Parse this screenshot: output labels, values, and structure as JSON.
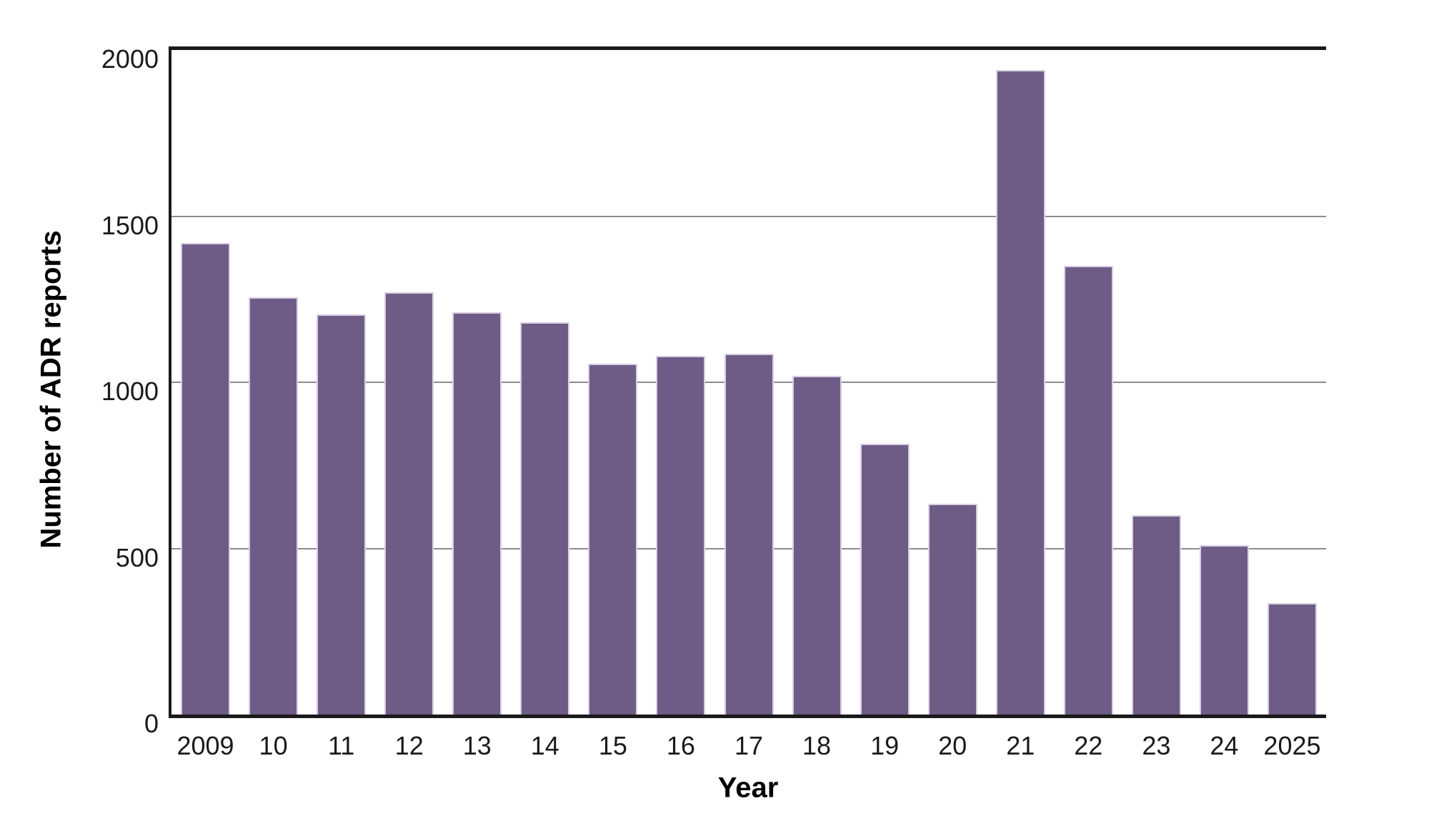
{
  "chart_data": {
    "type": "bar",
    "title": "",
    "xlabel": "Year",
    "ylabel": "Number of ADR reports",
    "categories": [
      "2009",
      "10",
      "11",
      "12",
      "13",
      "14",
      "15",
      "16",
      "17",
      "18",
      "19",
      "20",
      "21",
      "22",
      "23",
      "24",
      "2025"
    ],
    "values": [
      1420,
      1255,
      1205,
      1270,
      1210,
      1180,
      1055,
      1080,
      1085,
      1020,
      815,
      635,
      1940,
      1350,
      600,
      510,
      335
    ],
    "series_name": "Number of ADR reports",
    "ylim": [
      0,
      2000
    ],
    "yticks": [
      {
        "value": 0,
        "label": "0"
      },
      {
        "value": 500,
        "label": "500"
      },
      {
        "value": 1000,
        "label": "1000"
      },
      {
        "value": 1500,
        "label": "1500"
      },
      {
        "value": 2000,
        "label": "2000"
      }
    ],
    "grid": "horizontal-gridlines-on",
    "legend": "none",
    "colors": {
      "bar_fill": "#6e5c86",
      "bar_border": "#d8d0e2",
      "gridline": "#8c8c8c",
      "axis_line": "#1a1a1a",
      "text": "#1a1a1a",
      "background": "#ffffff"
    }
  }
}
